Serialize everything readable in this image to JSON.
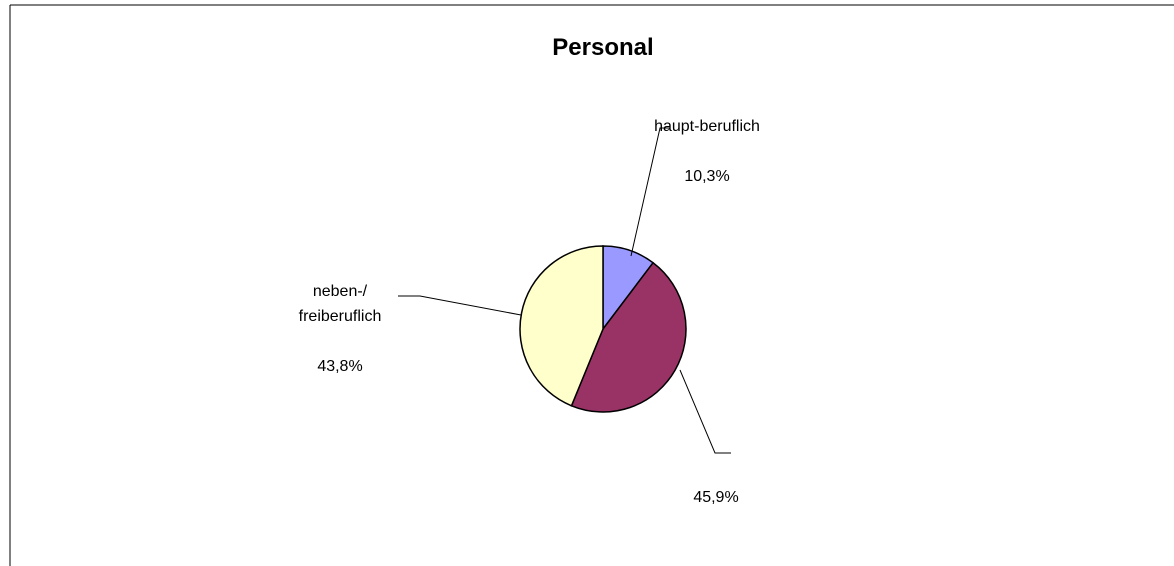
{
  "chart_data": {
    "type": "pie",
    "title": "Personal",
    "categories": [
      "haupt-beruflich",
      null,
      "neben-/\nfreiberuflich"
    ],
    "values": [
      10.3,
      45.9,
      43.8
    ],
    "value_labels": [
      "10,3%",
      "45,9%",
      "43,8%"
    ],
    "colors": [
      "#9999ff",
      "#993366",
      "#ffffcc"
    ]
  }
}
